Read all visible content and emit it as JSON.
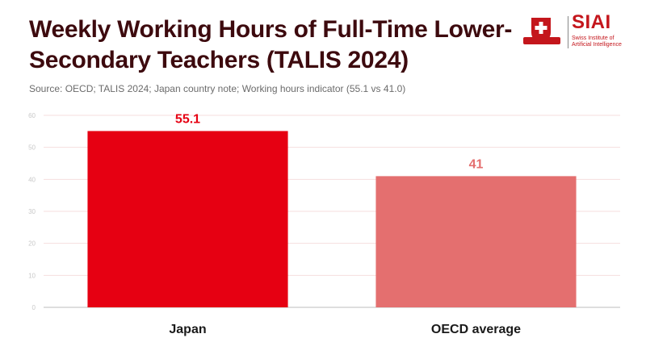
{
  "header": {
    "title": "Weekly Working Hours of Full-Time Lower-Secondary Teachers (TALIS 2024)",
    "source": "Source: OECD; TALIS 2024; Japan country note; Working hours indicator (55.1 vs 41.0)"
  },
  "logo": {
    "name": "SIAI",
    "line1": "Swiss Institute of",
    "line2": "Artificial Intelligence",
    "icon": "swiss-cross-shield-icon"
  },
  "colors": {
    "title": "#3d0a0e",
    "japan": "#e60012",
    "oecd": "#e46f6f",
    "grid": "#f6dede",
    "brand": "#c4161c"
  },
  "chart_data": {
    "type": "bar",
    "categories": [
      "Japan",
      "OECD average"
    ],
    "values": [
      55.1,
      41
    ],
    "value_labels": [
      "55.1",
      "41"
    ],
    "bar_colors": [
      "#e60012",
      "#e46f6f"
    ],
    "ylim": [
      0,
      60
    ],
    "yticks": [
      0,
      10,
      20,
      30,
      40,
      50,
      60
    ],
    "grid": true,
    "legend": "none",
    "xlabel": "",
    "ylabel": ""
  }
}
